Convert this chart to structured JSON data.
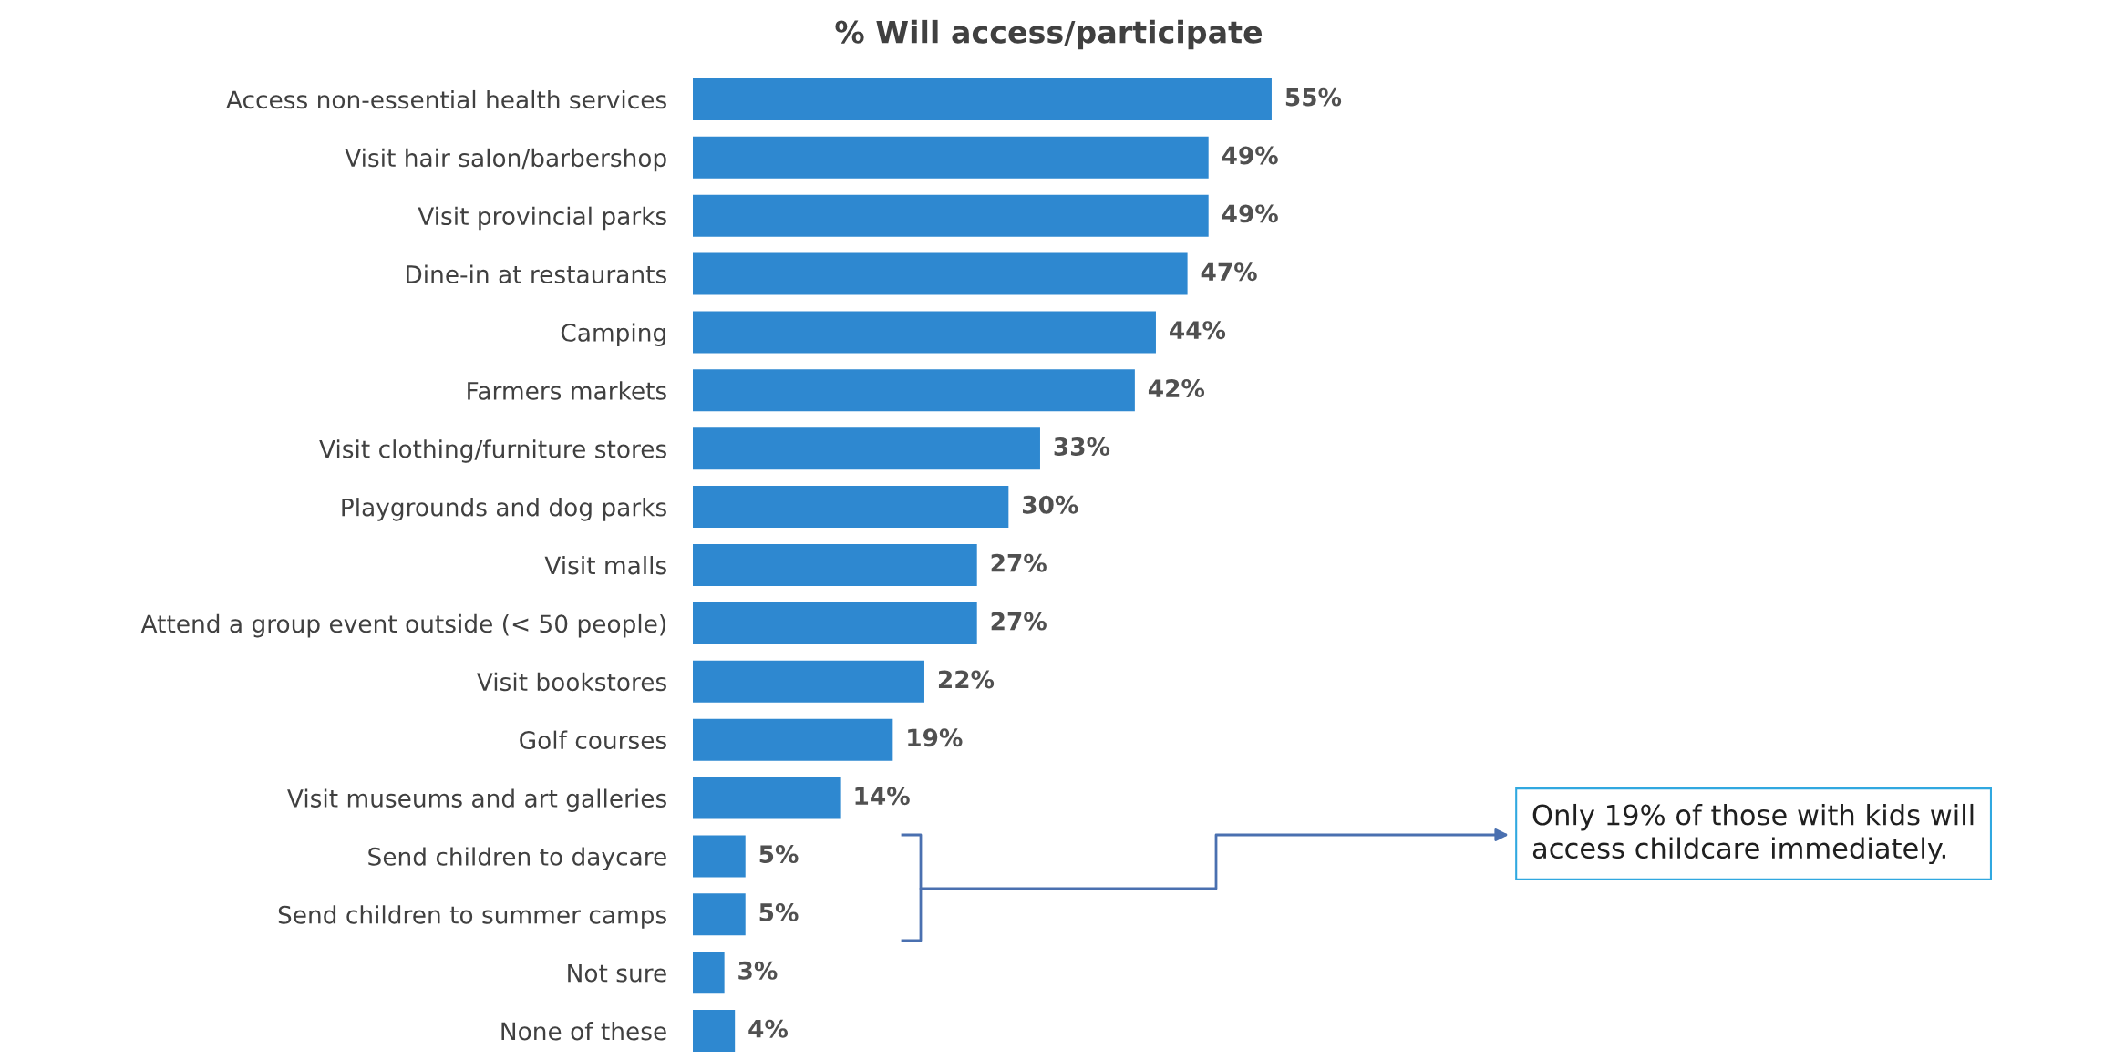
{
  "chart_data": {
    "type": "bar",
    "orientation": "horizontal",
    "title": "% Will access/participate",
    "categories": [
      "Access non-essential health services",
      "Visit hair salon/barbershop",
      "Visit provincial parks",
      "Dine-in at restaurants",
      "Camping",
      "Farmers markets",
      "Visit clothing/furniture stores",
      "Playgrounds and dog parks",
      "Visit malls",
      "Attend a group event outside (< 50 people)",
      "Visit bookstores",
      "Golf courses",
      "Visit museums and art galleries",
      "Send children to daycare",
      "Send children to summer camps",
      "Not sure",
      "None of these"
    ],
    "values": [
      55,
      49,
      49,
      47,
      44,
      42,
      33,
      30,
      27,
      27,
      22,
      19,
      14,
      5,
      5,
      3,
      4
    ],
    "color": "#2e88d0",
    "value_labels": [
      "55%",
      "49%",
      "49%",
      "47%",
      "44%",
      "42%",
      "33%",
      "30%",
      "27%",
      "27%",
      "22%",
      "19%",
      "14%",
      "5%",
      "5%",
      "3%",
      "4%"
    ],
    "annotations": [
      "Only 19% of those with kids will\naccess childcare immediately."
    ],
    "grid": false,
    "legend": false
  }
}
